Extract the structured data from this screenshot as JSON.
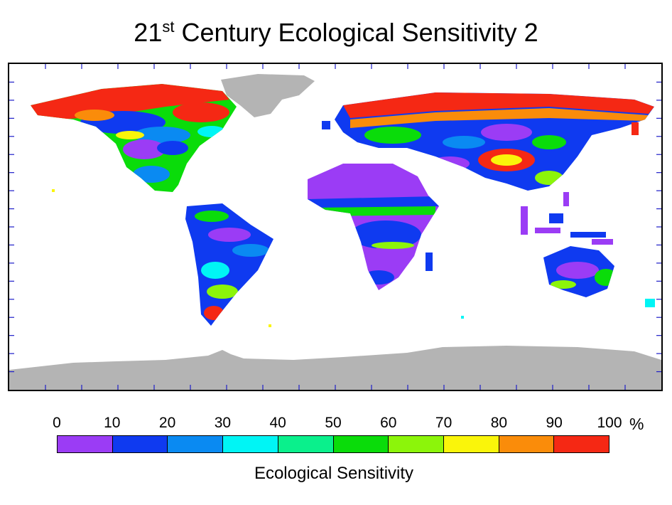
{
  "title": {
    "prefix": "21",
    "superscript": "st",
    "suffix": " Century Ecological Sensitivity 2"
  },
  "legend": {
    "ticks": [
      "0",
      "10",
      "20",
      "30",
      "40",
      "50",
      "60",
      "70",
      "80",
      "90",
      "100"
    ],
    "unit": "%",
    "label": "Ecological Sensitivity",
    "colors": [
      "#9b3cf5",
      "#0f3af0",
      "#0a8af2",
      "#00f5f5",
      "#0af08c",
      "#0adc0a",
      "#8cf50a",
      "#faf50a",
      "#fa8c0a",
      "#f52814"
    ]
  },
  "map": {
    "no_data_color": "#b4b4b4",
    "ocean_color": "#ffffff",
    "tick_color": "#1e1ec8"
  }
}
